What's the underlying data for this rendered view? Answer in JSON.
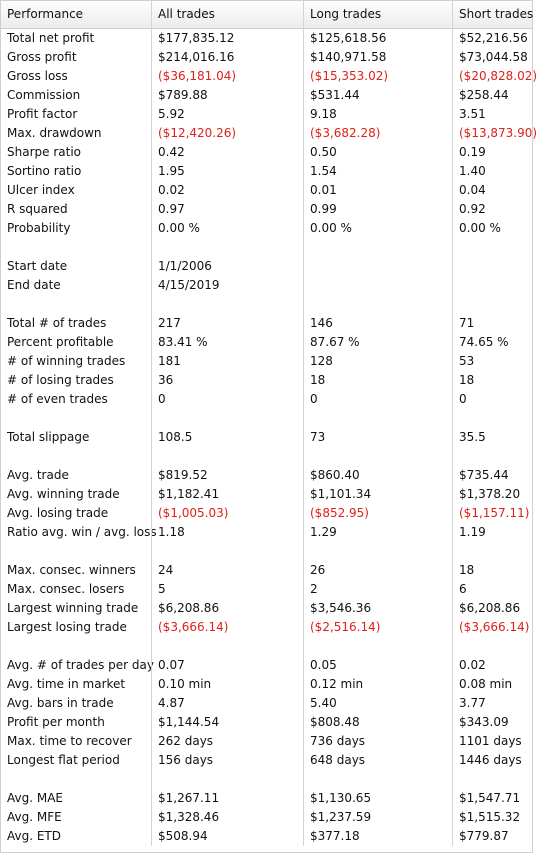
{
  "headers": [
    "Performance",
    "All trades",
    "Long trades",
    "Short trades"
  ],
  "colors": {
    "negative": "#e0201a",
    "text": "#111111",
    "grid": "#d4d4d4"
  },
  "rows": [
    {
      "label": "Total net profit",
      "all": "$177,835.12",
      "long": "$125,618.56",
      "short": "$52,216.56"
    },
    {
      "label": "Gross profit",
      "all": "$214,016.16",
      "long": "$140,971.58",
      "short": "$73,044.58"
    },
    {
      "label": "Gross loss",
      "all": "($36,181.04)",
      "long": "($15,353.02)",
      "short": "($20,828.02)"
    },
    {
      "label": "Commission",
      "all": "$789.88",
      "long": "$531.44",
      "short": "$258.44"
    },
    {
      "label": "Profit factor",
      "all": "5.92",
      "long": "9.18",
      "short": "3.51"
    },
    {
      "label": "Max. drawdown",
      "all": "($12,420.26)",
      "long": "($3,682.28)",
      "short": "($13,873.90)"
    },
    {
      "label": "Sharpe ratio",
      "all": "0.42",
      "long": "0.50",
      "short": "0.19"
    },
    {
      "label": "Sortino ratio",
      "all": "1.95",
      "long": "1.54",
      "short": "1.40"
    },
    {
      "label": "Ulcer index",
      "all": "0.02",
      "long": "0.01",
      "short": "0.04"
    },
    {
      "label": "R squared",
      "all": "0.97",
      "long": "0.99",
      "short": "0.92"
    },
    {
      "label": "Probability",
      "all": "0.00 %",
      "long": "0.00 %",
      "short": "0.00 %"
    },
    {
      "label": "",
      "all": "",
      "long": "",
      "short": ""
    },
    {
      "label": "Start date",
      "all": "1/1/2006",
      "long": "",
      "short": ""
    },
    {
      "label": "End date",
      "all": "4/15/2019",
      "long": "",
      "short": ""
    },
    {
      "label": "",
      "all": "",
      "long": "",
      "short": ""
    },
    {
      "label": "Total # of trades",
      "all": "217",
      "long": "146",
      "short": "71"
    },
    {
      "label": "Percent profitable",
      "all": "83.41 %",
      "long": "87.67 %",
      "short": "74.65 %"
    },
    {
      "label": "# of winning trades",
      "all": "181",
      "long": "128",
      "short": "53"
    },
    {
      "label": "# of losing trades",
      "all": "36",
      "long": "18",
      "short": "18"
    },
    {
      "label": "# of even trades",
      "all": "0",
      "long": "0",
      "short": "0"
    },
    {
      "label": "",
      "all": "",
      "long": "",
      "short": ""
    },
    {
      "label": "Total slippage",
      "all": "108.5",
      "long": "73",
      "short": "35.5"
    },
    {
      "label": "",
      "all": "",
      "long": "",
      "short": ""
    },
    {
      "label": "Avg. trade",
      "all": "$819.52",
      "long": "$860.40",
      "short": "$735.44"
    },
    {
      "label": "Avg. winning trade",
      "all": "$1,182.41",
      "long": "$1,101.34",
      "short": "$1,378.20"
    },
    {
      "label": "Avg. losing trade",
      "all": "($1,005.03)",
      "long": "($852.95)",
      "short": "($1,157.11)"
    },
    {
      "label": "Ratio avg. win / avg. loss",
      "all": "1.18",
      "long": "1.29",
      "short": "1.19"
    },
    {
      "label": "",
      "all": "",
      "long": "",
      "short": ""
    },
    {
      "label": "Max. consec. winners",
      "all": "24",
      "long": "26",
      "short": "18"
    },
    {
      "label": "Max. consec. losers",
      "all": "5",
      "long": "2",
      "short": "6"
    },
    {
      "label": "Largest winning trade",
      "all": "$6,208.86",
      "long": "$3,546.36",
      "short": "$6,208.86"
    },
    {
      "label": "Largest losing trade",
      "all": "($3,666.14)",
      "long": "($2,516.14)",
      "short": "($3,666.14)"
    },
    {
      "label": "",
      "all": "",
      "long": "",
      "short": ""
    },
    {
      "label": "Avg. # of trades per day",
      "all": "0.07",
      "long": "0.05",
      "short": "0.02"
    },
    {
      "label": "Avg. time in market",
      "all": "0.10 min",
      "long": "0.12 min",
      "short": "0.08 min"
    },
    {
      "label": "Avg. bars in trade",
      "all": "4.87",
      "long": "5.40",
      "short": "3.77"
    },
    {
      "label": "Profit per month",
      "all": "$1,144.54",
      "long": "$808.48",
      "short": "$343.09"
    },
    {
      "label": "Max. time to recover",
      "all": "262 days",
      "long": "736 days",
      "short": "1101 days"
    },
    {
      "label": "Longest flat period",
      "all": "156 days",
      "long": "648 days",
      "short": "1446 days"
    },
    {
      "label": "",
      "all": "",
      "long": "",
      "short": ""
    },
    {
      "label": "Avg. MAE",
      "all": "$1,267.11",
      "long": "$1,130.65",
      "short": "$1,547.71"
    },
    {
      "label": "Avg. MFE",
      "all": "$1,328.46",
      "long": "$1,237.59",
      "short": "$1,515.32"
    },
    {
      "label": "Avg. ETD",
      "all": "$508.94",
      "long": "$377.18",
      "short": "$779.87"
    }
  ]
}
